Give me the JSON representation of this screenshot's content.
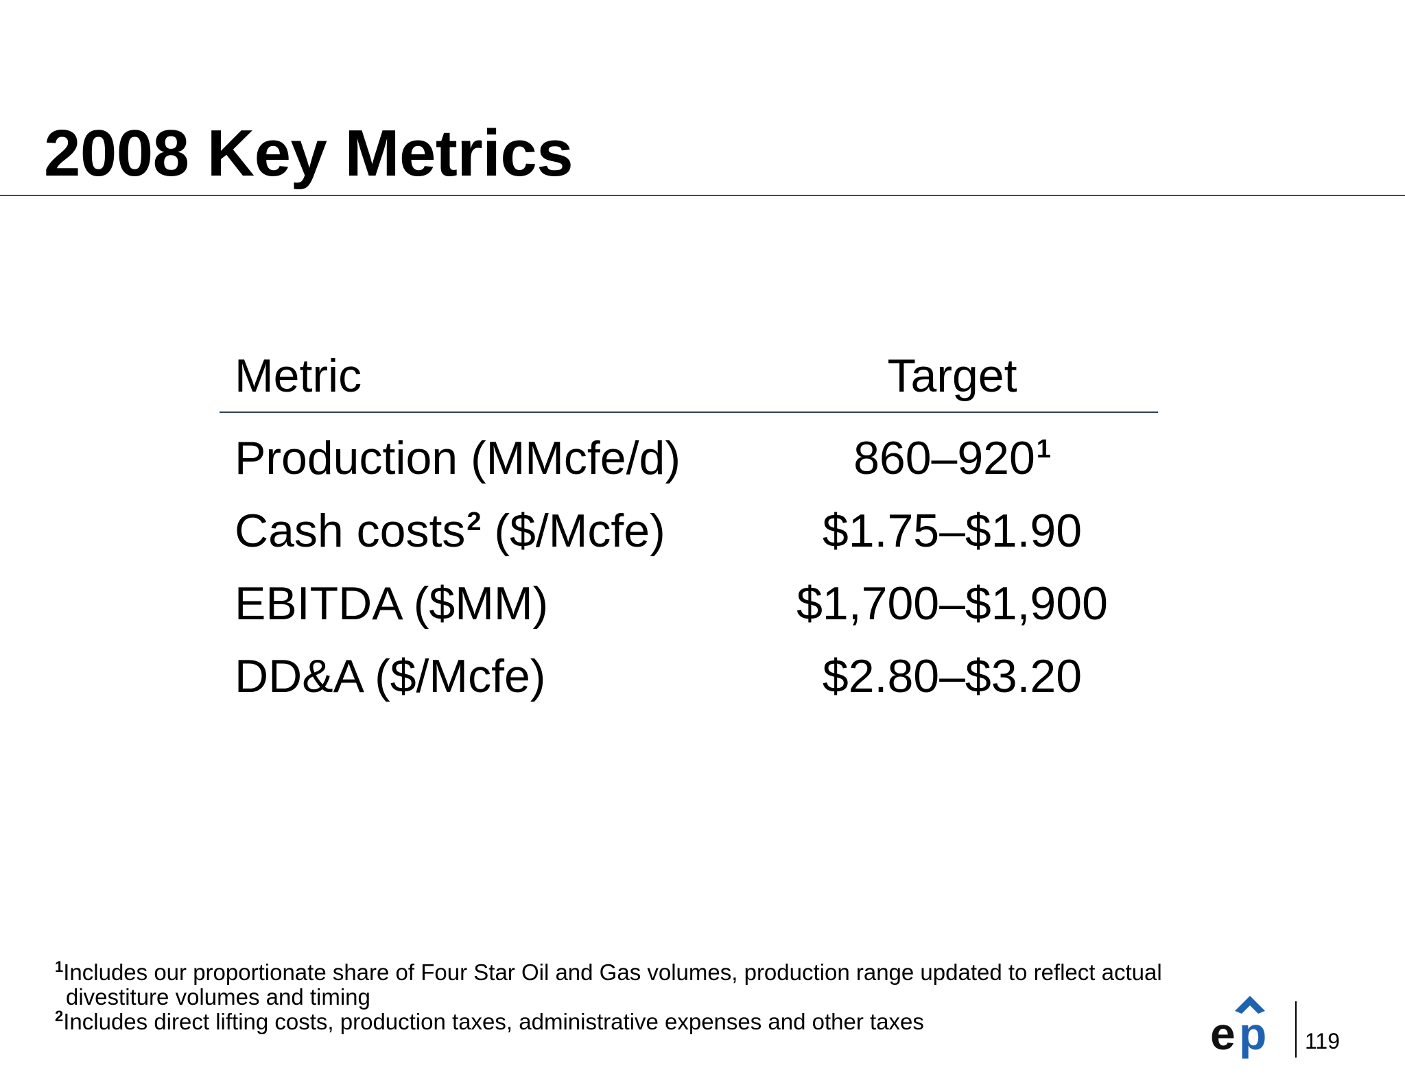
{
  "slide": {
    "title": "2008 Key Metrics",
    "page_number": "119"
  },
  "table": {
    "headers": {
      "metric": "Metric",
      "target": "Target"
    },
    "rows": [
      {
        "metric_pre": "Production (MMcfe/d)",
        "metric_sup": "",
        "metric_post": "",
        "target_value": "860–920",
        "target_sup": "1"
      },
      {
        "metric_pre": "Cash costs",
        "metric_sup": "2",
        "metric_post": " ($/Mcfe)",
        "target_value": "$1.75–$1.90",
        "target_sup": ""
      },
      {
        "metric_pre": "EBITDA ($MM)",
        "metric_sup": "",
        "metric_post": "",
        "target_value": "$1,700–$1,900",
        "target_sup": ""
      },
      {
        "metric_pre": "DD&A ($/Mcfe)",
        "metric_sup": "",
        "metric_post": "",
        "target_value": "$2.80–$3.20",
        "target_sup": ""
      }
    ]
  },
  "footnotes": [
    {
      "marker": "1",
      "text": "Includes our proportionate share of Four Star Oil and Gas volumes, production range updated to reflect actual divestiture volumes and timing"
    },
    {
      "marker": "2",
      "text": "Includes direct lifting costs, production taxes, administrative expenses and other taxes"
    }
  ],
  "logo": {
    "icon": "ep-logo-icon",
    "wordmark": "ep",
    "colors": {
      "e": "#111111",
      "p": "#1f62b0",
      "caret": "#1f62b0"
    }
  },
  "colors": {
    "title_rule": "#3d4a5c",
    "header_rule": "#2c3e54"
  }
}
